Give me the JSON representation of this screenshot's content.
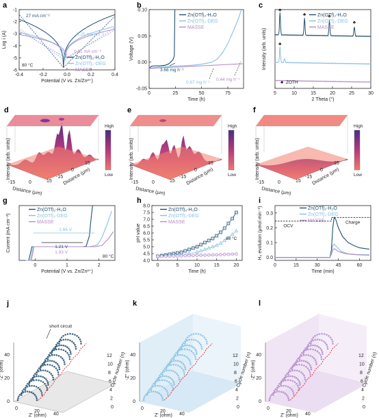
{
  "colors": {
    "h2o": "#1f4e6e",
    "deg": "#86bfe0",
    "masse": "#b48ac9",
    "low": "#f0766e",
    "high": "#4b2c84"
  },
  "panels": [
    "a",
    "b",
    "c",
    "d",
    "e",
    "f",
    "g",
    "h",
    "i",
    "j",
    "k",
    "l"
  ],
  "series_names": {
    "h2o": "Zn(OTf)₂-H₂O",
    "deg": "Zn(OTf)₂-DEG",
    "masse": "MASSE"
  },
  "chart_data": [
    {
      "panel": "a",
      "type": "line",
      "xlabel": "Potential (V vs. Zn/Zn²⁺)",
      "ylabel": "Log i (A)",
      "xlim": [
        -0.4,
        0.4
      ],
      "ylim": [
        -6,
        -1
      ],
      "xticks": [
        "-0.4",
        "-0.2",
        "0.0",
        "0.2",
        "0.4"
      ],
      "yticks": [
        "-6",
        "-5",
        "-4",
        "-3",
        "-2",
        "-1"
      ],
      "annotations": [
        "27 mA cm⁻²",
        "0.25 mA cm⁻²",
        "0.21 mA cm⁻²",
        "80 °C"
      ],
      "series": [
        {
          "name": "Zn(OTf)₂-H₂O",
          "color": "#1f4e6e",
          "ecorr": -0.03,
          "floor": -5.8,
          "slope_l": -1.35,
          "slope_r": -1.4,
          "left_end": -1.7,
          "right_end": -1.45
        },
        {
          "name": "Zn(OTf)₂-DEG",
          "color": "#86bfe0",
          "ecorr": -0.02,
          "floor": -5.2,
          "slope_l": -2.5,
          "slope_r": -2.4,
          "left_end": -2.85,
          "right_end": -2.4
        },
        {
          "name": "MASSE",
          "color": "#b48ac9",
          "ecorr": -0.01,
          "floor": -5.0,
          "slope_l": -2.6,
          "slope_r": -2.6,
          "left_end": -3.05,
          "right_end": -2.6
        }
      ]
    },
    {
      "panel": "b",
      "type": "line",
      "xlabel": "Time (h)",
      "ylabel": "Voltage (V)",
      "xlim": [
        0,
        90
      ],
      "ylim": [
        -0.05,
        0.1
      ],
      "xticks": [
        "0",
        "25",
        "50",
        "75"
      ],
      "yticks": [
        "-0.05",
        "0.00",
        "0.05",
        "0.10"
      ],
      "annotations": [
        "3.66 mg h⁻¹",
        "0.67 mg h⁻¹",
        "0.44 mg h⁻¹"
      ],
      "series": [
        {
          "name": "Zn(OTf)₂-H₂O",
          "color": "#1f4e6e",
          "x": [
            0,
            2,
            5,
            10,
            15,
            18,
            20,
            22,
            23,
            24,
            24.5
          ],
          "y": [
            -0.012,
            -0.008,
            -0.007,
            -0.007,
            -0.006,
            -0.004,
            -0.001,
            0.003,
            0.006,
            0.012,
            0.1
          ]
        },
        {
          "name": "Zn(OTf)₂-DEG",
          "color": "#86bfe0",
          "x": [
            0,
            5,
            10,
            20,
            30,
            40,
            50,
            60,
            65,
            70,
            75,
            80,
            85,
            88
          ],
          "y": [
            -0.012,
            -0.01,
            -0.009,
            -0.008,
            -0.007,
            -0.006,
            -0.004,
            0.0,
            0.006,
            0.018,
            0.035,
            0.058,
            0.082,
            0.1
          ]
        },
        {
          "name": "MASSE",
          "color": "#b48ac9",
          "x": [
            0,
            10,
            20,
            30,
            40,
            50,
            60,
            70,
            80,
            90
          ],
          "y": [
            -0.012,
            -0.011,
            -0.01,
            -0.009,
            -0.008,
            -0.007,
            -0.006,
            -0.005,
            -0.004,
            -0.003
          ]
        }
      ]
    },
    {
      "panel": "c",
      "type": "line",
      "xlabel": "2 Theta (°)",
      "ylabel": "Intensity (arb. units)",
      "xlim": [
        5,
        30
      ],
      "xticks": [
        "5",
        "10",
        "15",
        "20",
        "25",
        "30"
      ],
      "annotations": [
        "ZOTH"
      ],
      "series": [
        {
          "name": "Zn(OTf)₂-H₂O",
          "color": "#1f4e6e",
          "offset": 0.68,
          "peaks": [
            [
              6.3,
              0.28
            ],
            [
              12.7,
              0.22
            ],
            [
              19.2,
              0.2
            ],
            [
              25.7,
              0.12
            ]
          ]
        },
        {
          "name": "Zn(OTf)₂-DEG",
          "color": "#86bfe0",
          "offset": 0.33,
          "peaks": [
            [
              6.3,
              0.2
            ],
            [
              7.5,
              0.05
            ]
          ]
        },
        {
          "name": "MASSE",
          "color": "#b48ac9",
          "offset": 0.1,
          "peaks": []
        }
      ]
    },
    {
      "panel": "d",
      "type": "surface",
      "zlabel": "Intensity (arb. units)",
      "xlabel": "Distance (μm)",
      "ylabel": "Distance (μm)",
      "ticks": [
        "-15",
        "0",
        "15"
      ],
      "colorbar": [
        "High",
        "Low"
      ],
      "relative_height": "high"
    },
    {
      "panel": "e",
      "type": "surface",
      "zlabel": "Intensity (arb. units)",
      "xlabel": "Distance (μm)",
      "ylabel": "Distance (μm)",
      "ticks": [
        "-15",
        "0",
        "15"
      ],
      "colorbar": [
        "High",
        "Low"
      ],
      "relative_height": "medium"
    },
    {
      "panel": "f",
      "type": "surface",
      "zlabel": "Intensity (arb. units)",
      "xlabel": "Distance (μm)",
      "ylabel": "Distance (μm)",
      "ticks": [
        "-15",
        "0",
        "15"
      ],
      "colorbar": [
        "High",
        "Low"
      ],
      "relative_height": "flat"
    },
    {
      "panel": "g",
      "type": "line",
      "xlabel": "Potential (V vs. Zn/Zn²⁺)",
      "ylabel": "Current (mA cm⁻²)",
      "xlim": [
        -0.5,
        2.5
      ],
      "ylim": [
        -0.5,
        1.5
      ],
      "xticks": [
        "0",
        "1",
        "2"
      ],
      "annotations": [
        "1.66 V",
        "1.21 V",
        "1.93 V",
        "80 °C"
      ],
      "series": [
        {
          "name": "Zn(OTf)₂-H₂O",
          "color": "#1f4e6e",
          "x": [
            -0.35,
            -0.2,
            -0.1,
            1.5,
            1.6,
            1.7,
            1.75,
            1.8
          ],
          "y": [
            -0.5,
            -0.5,
            0.0,
            0.0,
            0.02,
            0.4,
            1.0,
            1.5
          ]
        },
        {
          "name": "Zn(OTf)₂-DEG",
          "color": "#86bfe0",
          "x": [
            -0.3,
            -0.15,
            -0.06,
            1.7,
            1.95,
            2.1,
            2.25,
            2.4
          ],
          "y": [
            -0.5,
            -0.5,
            0.0,
            0.0,
            0.06,
            0.35,
            0.8,
            1.3
          ]
        },
        {
          "name": "MASSE",
          "color": "#b48ac9",
          "x": [
            -0.25,
            -0.12,
            -0.03,
            1.9,
            2.1,
            2.3,
            2.45
          ],
          "y": [
            -0.5,
            -0.5,
            0.0,
            0.0,
            0.05,
            0.3,
            0.55
          ]
        }
      ]
    },
    {
      "panel": "h",
      "type": "line",
      "xlabel": "Time (h)",
      "ylabel": "pH value",
      "xlim": [
        -1.5,
        21.5
      ],
      "ylim": [
        4.0,
        8.0
      ],
      "xticks": [
        "0",
        "5",
        "10",
        "15",
        "20"
      ],
      "yticks": [
        "4.0",
        "4.5",
        "5.0",
        "5.5",
        "6.0",
        "6.5",
        "7.0",
        "7.5",
        "8.0"
      ],
      "annotations": [
        "80 °C"
      ],
      "series": [
        {
          "name": "Zn(OTf)₂-H₂O",
          "color": "#1f4e6e",
          "marker": "square",
          "x": [
            0,
            1,
            2,
            3,
            4,
            5,
            6,
            7,
            8,
            9,
            10,
            11,
            12,
            13,
            14,
            15,
            16,
            17,
            18,
            19,
            20
          ],
          "y": [
            4.3,
            4.35,
            4.4,
            4.45,
            4.5,
            4.55,
            4.6,
            4.7,
            4.8,
            4.9,
            5.0,
            5.15,
            5.3,
            5.45,
            5.6,
            5.8,
            6.05,
            6.35,
            6.7,
            7.05,
            7.5
          ]
        },
        {
          "name": "Zn(OTf)₂-DEG",
          "color": "#86bfe0",
          "marker": "triangle",
          "x": [
            0,
            2,
            4,
            6,
            8,
            10,
            11,
            12,
            13,
            14,
            15,
            16,
            17,
            18,
            19,
            20
          ],
          "y": [
            4.3,
            4.35,
            4.4,
            4.45,
            4.5,
            4.6,
            4.7,
            4.8,
            4.9,
            5.0,
            5.1,
            5.25,
            5.45,
            5.65,
            5.9,
            6.15
          ]
        },
        {
          "name": "MASSE",
          "color": "#b48ac9",
          "marker": "circle",
          "x": [
            0,
            1,
            2,
            3,
            4,
            5,
            6,
            7,
            8,
            9,
            10,
            11,
            12,
            13,
            14,
            15,
            16,
            17,
            18,
            19,
            20
          ],
          "y": [
            4.3,
            4.3,
            4.3,
            4.31,
            4.32,
            4.32,
            4.33,
            4.34,
            4.35,
            4.36,
            4.37,
            4.38,
            4.38,
            4.39,
            4.4,
            4.41,
            4.42,
            4.43,
            4.44,
            4.45,
            4.47
          ]
        }
      ]
    },
    {
      "panel": "i",
      "type": "line",
      "xlabel": "Time (min)",
      "ylabel": "H₂ evolution (μmol min⁻¹)",
      "xlim": [
        0,
        68
      ],
      "ylim": [
        -0.02,
        0.35
      ],
      "xticks": [
        "0",
        "15",
        "30",
        "45",
        "60"
      ],
      "yticks": [
        "0.0",
        "0.1",
        "0.2",
        "0.3"
      ],
      "annotations": [
        "OCV",
        "Charge"
      ],
      "series": [
        {
          "name": "Zn(OTf)₂-H₂O",
          "color": "#1f4e6e",
          "x": [
            0,
            39,
            40,
            41,
            42,
            43,
            45,
            48,
            52,
            56,
            60,
            65,
            67
          ],
          "y": [
            0.0,
            0.0,
            0.05,
            0.2,
            0.27,
            0.26,
            0.2,
            0.14,
            0.1,
            0.08,
            0.065,
            0.058,
            0.056
          ]
        },
        {
          "name": "Zn(OTf)₂-DEG",
          "color": "#86bfe0",
          "x": [
            0,
            39,
            40,
            41,
            42,
            44,
            47,
            52,
            58,
            67
          ],
          "y": [
            0.0,
            0.0,
            0.03,
            0.08,
            0.09,
            0.07,
            0.04,
            0.025,
            0.02,
            0.018
          ]
        },
        {
          "name": "MASSE",
          "color": "#b48ac9",
          "x": [
            0,
            39,
            40,
            41,
            42,
            45,
            50,
            58,
            67
          ],
          "y": [
            0.0,
            0.0,
            0.02,
            0.05,
            0.06,
            0.04,
            0.025,
            0.018,
            0.015
          ]
        }
      ]
    },
    {
      "panel": "j",
      "type": "scatter",
      "xlabel": "Z' (ohm)",
      "ylabel": "-Z'' (ohm)",
      "zlabel": "Cycle number (n)",
      "xticks": [
        "0",
        "20",
        "40"
      ],
      "yticks": [
        "0",
        "20",
        "40"
      ],
      "nticks": [
        "0",
        "2",
        "4",
        "6",
        "8",
        "10",
        "12"
      ],
      "annotations": [
        "short circuit"
      ],
      "cycles": 12,
      "series_color": "#1f4e6e"
    },
    {
      "panel": "k",
      "type": "scatter",
      "xlabel": "Z' (ohm)",
      "ylabel": "-Z'' (ohm)",
      "zlabel": "Cycle number (n)",
      "xticks": [
        "0",
        "20",
        "40"
      ],
      "yticks": [
        "0",
        "20",
        "40"
      ],
      "nticks": [
        "0",
        "2",
        "4",
        "6",
        "8",
        "10",
        "12"
      ],
      "cycles": 12,
      "series_color": "#86bfe0"
    },
    {
      "panel": "l",
      "type": "scatter",
      "xlabel": "Z' (ohm)",
      "ylabel": "-Z'' (ohm)",
      "zlabel": "Cycle number (n)",
      "xticks": [
        "0",
        "20",
        "40"
      ],
      "yticks": [
        "0",
        "20",
        "40"
      ],
      "nticks": [
        "0",
        "2",
        "4",
        "6",
        "8",
        "10",
        "12"
      ],
      "cycles": 12,
      "series_color": "#b48ac9"
    }
  ]
}
